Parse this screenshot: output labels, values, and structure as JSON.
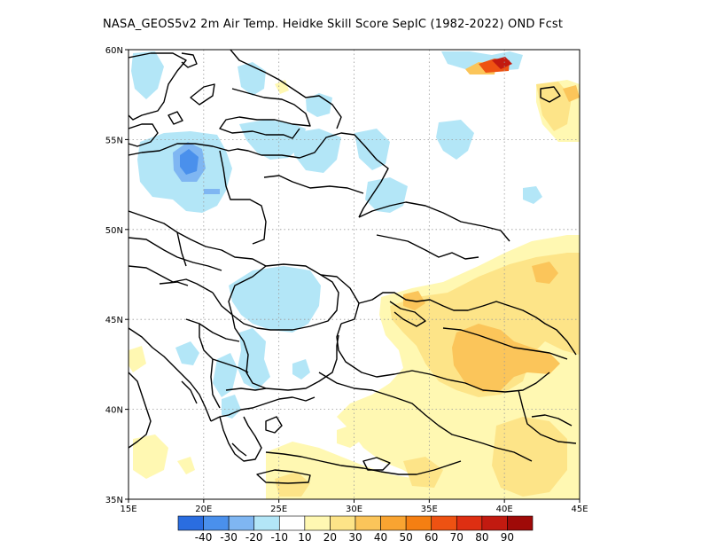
{
  "title": "NASA_GEOS5v2  2m Air Temp. Heidke Skill Score SepIC (1982-2022) OND Fcst",
  "map": {
    "lon_range": [
      15,
      45
    ],
    "lat_range": [
      35,
      60
    ],
    "lat_ticks": [
      {
        "value": 60,
        "label": "60N"
      },
      {
        "value": 55,
        "label": "55N"
      },
      {
        "value": 50,
        "label": "50N"
      },
      {
        "value": 45,
        "label": "45N"
      },
      {
        "value": 40,
        "label": "40N"
      },
      {
        "value": 35,
        "label": "35N"
      }
    ],
    "lon_ticks": [
      {
        "value": 15,
        "label": "15E"
      },
      {
        "value": 20,
        "label": "20E"
      },
      {
        "value": 25,
        "label": "25E"
      },
      {
        "value": 30,
        "label": "30E"
      },
      {
        "value": 35,
        "label": "35E"
      },
      {
        "value": 40,
        "label": "40E"
      },
      {
        "value": 45,
        "label": "45E"
      }
    ],
    "gridlines": "dotted"
  },
  "colorbar": {
    "colors": [
      "#2a6de0",
      "#4a90ec",
      "#7fb6f2",
      "#b3e6f7",
      "#ffffff",
      "#fff8b2",
      "#fde488",
      "#fbc55a",
      "#f9a431",
      "#f57f12",
      "#ee5212",
      "#de2f12",
      "#c21a10",
      "#9f0a08"
    ],
    "labels": [
      "-40",
      "-30",
      "-20",
      "-10",
      "10",
      "20",
      "30",
      "40",
      "50",
      "60",
      "70",
      "80",
      "90"
    ]
  },
  "shading": {
    "cyan": "#b3e6f7",
    "blue": "#7fb6f2",
    "dark_blue": "#4a90ec",
    "yellow": "#fff8b2",
    "light_orange": "#fde488",
    "orange": "#fbc55a",
    "red": "#ee5212",
    "dark_red": "#c21a10"
  }
}
